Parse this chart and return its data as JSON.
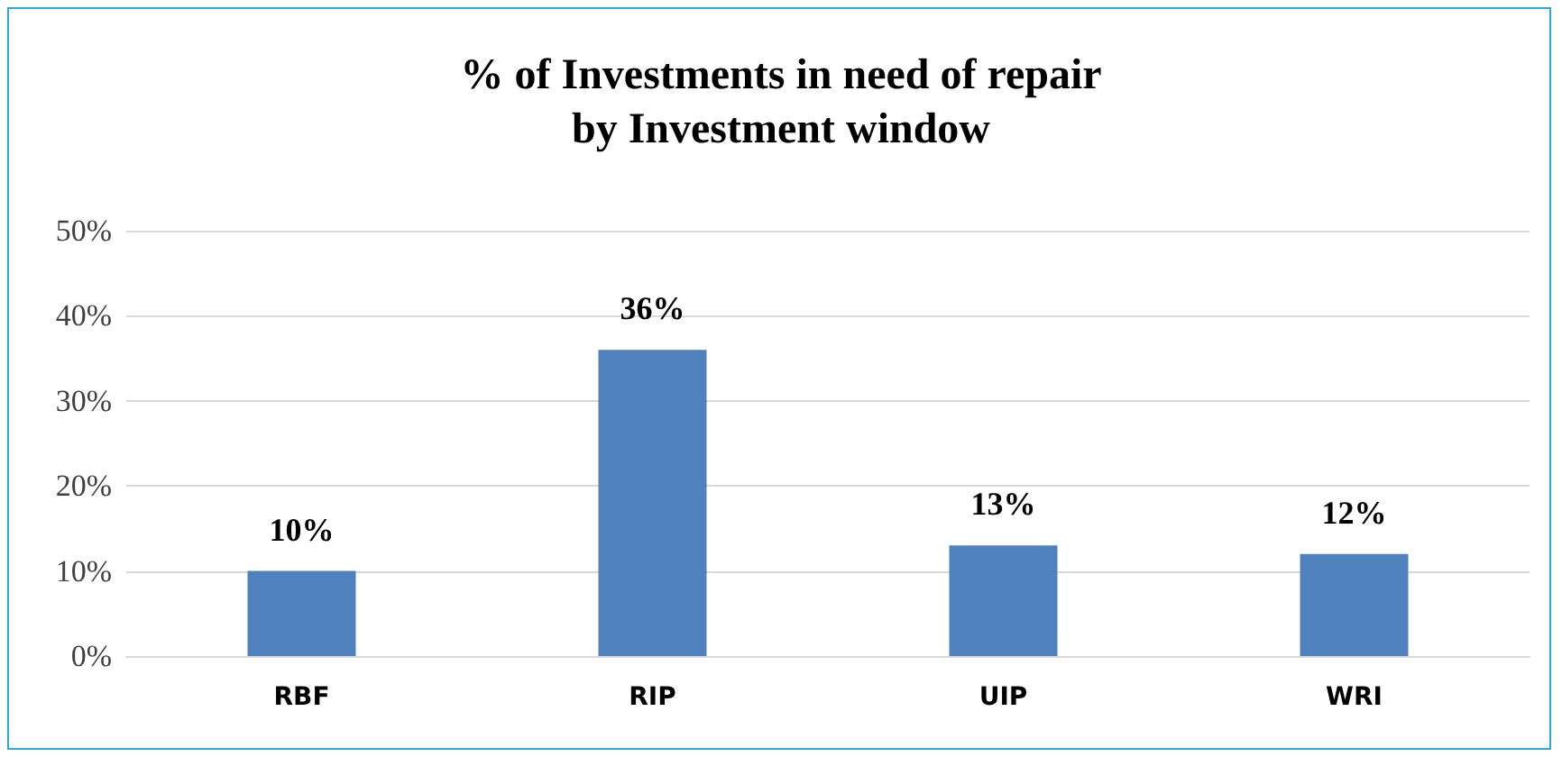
{
  "chart_data": {
    "type": "bar",
    "title": "% of Investments in need of repair\nby Investment window",
    "categories": [
      "RBF",
      "RIP",
      "UIP",
      "WRI"
    ],
    "values": [
      10,
      36,
      13,
      12
    ],
    "color": "#4f81bd",
    "value_labels": [
      "10%",
      "36%",
      "13%",
      "12%"
    ],
    "ylim": [
      0,
      50
    ],
    "yticks": [
      {
        "value": 0,
        "label": "0%"
      },
      {
        "value": 10,
        "label": "10%"
      },
      {
        "value": 20,
        "label": "20%"
      },
      {
        "value": 30,
        "label": "30%"
      },
      {
        "value": 40,
        "label": "40%"
      },
      {
        "value": 50,
        "label": "50%"
      }
    ],
    "grid": "y"
  }
}
